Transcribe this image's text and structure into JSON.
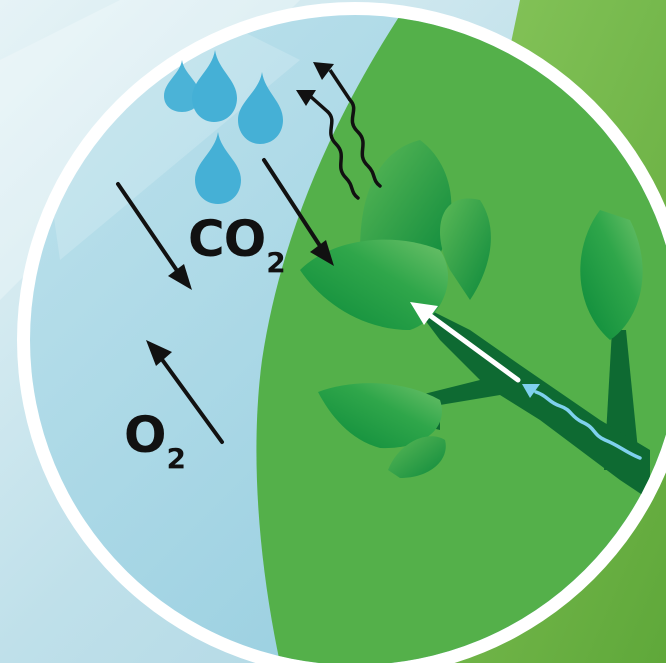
{
  "colors": {
    "background_light": "#d8ecf1",
    "air": "#a8d6e4",
    "plant_field": "#54b04a",
    "plant_dark": "#0e6a32",
    "leaf": "#1f9a45",
    "water_drop": "#45b0d6",
    "water_flow": "#7fd1ee",
    "ring": "#ffffff"
  },
  "icons": [
    "water-drop-icon",
    "heat-wave-icon",
    "leaf-icon",
    "stem-icon",
    "arrow-icon"
  ],
  "labels": {
    "co2_main": "CO",
    "co2_sub": "2",
    "o2_main": "O",
    "o2_sub": "2"
  }
}
